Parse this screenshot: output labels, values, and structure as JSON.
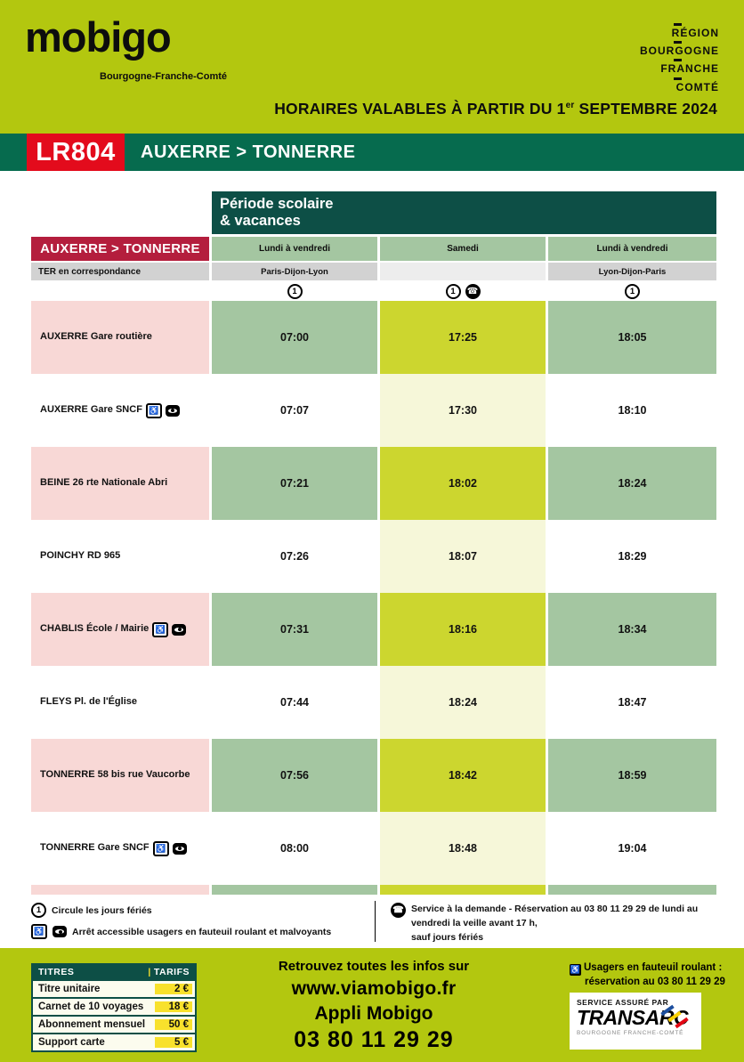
{
  "header": {
    "brand_name": "mobigo",
    "brand_tagline": "Bourgogne-Franche-Comté",
    "region_logo_lines": [
      "RÉGION",
      "BOURGOGNE",
      "FRANCHE",
      "COMTÉ"
    ],
    "validity_prefix": "HORAIRES VALABLES À PARTIR DU 1",
    "validity_sup": "er",
    "validity_suffix": " SEPTEMBRE 2024"
  },
  "line": {
    "code": "LR804",
    "route": "AUXERRE > TONNERRE"
  },
  "table": {
    "period_header_line1": "Période scolaire",
    "period_header_line2": "& vacances",
    "corner_title": "AUXERRE > TONNERRE",
    "ter_row_label": "TER en correspondance",
    "columns": [
      {
        "day": "Lundi à vendredi",
        "ter": "Paris-Dijon-Lyon"
      },
      {
        "day": "Samedi",
        "ter": ""
      },
      {
        "day": "Lundi à vendredi",
        "ter": "Lyon-Dijon-Paris"
      }
    ],
    "stops": [
      {
        "name": "AUXERRE Gare routière",
        "accessible": false,
        "times": [
          "07:00",
          "17:25",
          "18:05"
        ]
      },
      {
        "name": "AUXERRE Gare SNCF",
        "accessible": true,
        "times": [
          "07:07",
          "17:30",
          "18:10"
        ]
      },
      {
        "name": "BEINE 26 rte Nationale Abri",
        "accessible": false,
        "times": [
          "07:21",
          "18:02",
          "18:24"
        ]
      },
      {
        "name": "POINCHY RD 965",
        "accessible": false,
        "times": [
          "07:26",
          "18:07",
          "18:29"
        ]
      },
      {
        "name": "CHABLIS École / Mairie",
        "accessible": true,
        "times": [
          "07:31",
          "18:16",
          "18:34"
        ]
      },
      {
        "name": "FLEYS Pl. de l'Église",
        "accessible": false,
        "times": [
          "07:44",
          "18:24",
          "18:47"
        ]
      },
      {
        "name": "TONNERRE 58 bis rue Vaucorbe",
        "accessible": false,
        "times": [
          "07:56",
          "18:42",
          "18:59"
        ]
      },
      {
        "name": "TONNERRE Gare SNCF",
        "accessible": true,
        "times": [
          "08:00",
          "18:48",
          "19:04"
        ]
      }
    ]
  },
  "icons": {
    "holiday_number": "1",
    "phone_glyph": "☎",
    "wheelchair_glyph": "♿"
  },
  "legend": {
    "holiday": "Circule les jours fériés",
    "accessible": "Arrêt accessible usagers en fauteuil roulant et malvoyants",
    "on_demand_line1": "Service à la demande - Réservation au 03 80 11 29 29 de lundi au vendredi la veille avant 17 h,",
    "on_demand_line2": "sauf jours fériés"
  },
  "footer": {
    "tariffs": {
      "header_left": "TITRES",
      "header_sep": "|",
      "header_right": "TARIFS",
      "rows": [
        {
          "label": "Titre unitaire",
          "price": "2 €"
        },
        {
          "label": "Carnet de 10 voyages",
          "price": "18 €"
        },
        {
          "label": "Abonnement mensuel",
          "price": "50 €"
        },
        {
          "label": "Support carte",
          "price": "5 €"
        }
      ]
    },
    "info_line1": "Retrouvez toutes les infos sur",
    "info_line2": "www.viamobigo.fr",
    "info_line3": "Appli Mobigo",
    "info_line4": "03 80 11 29 29",
    "wheelchair_line1": "Usagers en fauteuil roulant :",
    "wheelchair_line2": "réservation au 03 80 11 29 29",
    "transarc_service": "SERVICE ASSURÉ PAR",
    "transarc_name": "TRANSARC",
    "transarc_sub": "BOURGOGNE FRANCHE-COMTÉ"
  },
  "colors": {
    "lime": "#b3c70f",
    "dark_green_bar": "#066b4e",
    "teal_header": "#0d4f46",
    "crimson_header": "#b41e3d",
    "bright_red_code": "#e30b1c",
    "sage_cell": "#a4c6a1",
    "chartreuse_cell": "#ccd62f",
    "pale_yellow_cell": "#f6f7d9",
    "pink_cell": "#f8d8d6",
    "gray_cell": "#d2d2d2",
    "price_chip_yellow": "#f8e12c"
  }
}
